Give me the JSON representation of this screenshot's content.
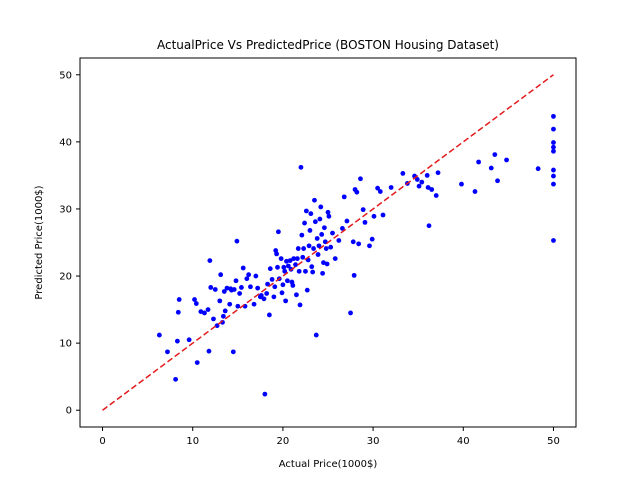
{
  "chart_data": {
    "type": "scatter",
    "title": "ActualPrice Vs PredictedPrice (BOSTON Housing Dataset)",
    "xlabel": "Actual Price(1000$)",
    "ylabel": "Predicted Price(1000$)",
    "xlim": [
      -2.5,
      52.5
    ],
    "ylim": [
      -2.5,
      52.5
    ],
    "xticks": [
      0,
      10,
      20,
      30,
      40,
      50
    ],
    "yticks": [
      0,
      10,
      20,
      30,
      40,
      50
    ],
    "grid": false,
    "series": [
      {
        "style": "points",
        "color": "#0000ff",
        "points": [
          [
            6.3,
            11.2
          ],
          [
            7.2,
            8.7
          ],
          [
            8.1,
            4.6
          ],
          [
            8.3,
            10.3
          ],
          [
            8.4,
            14.6
          ],
          [
            8.5,
            16.5
          ],
          [
            9.6,
            10.5
          ],
          [
            10.2,
            16.5
          ],
          [
            10.4,
            15.9
          ],
          [
            10.5,
            7.1
          ],
          [
            10.9,
            14.7
          ],
          [
            11.3,
            14.5
          ],
          [
            11.7,
            15.0
          ],
          [
            11.8,
            8.8
          ],
          [
            11.9,
            22.3
          ],
          [
            12.0,
            18.3
          ],
          [
            12.3,
            13.6
          ],
          [
            12.5,
            18.0
          ],
          [
            12.7,
            12.6
          ],
          [
            13.0,
            16.3
          ],
          [
            13.1,
            20.2
          ],
          [
            13.3,
            13.1
          ],
          [
            13.4,
            14.0
          ],
          [
            13.5,
            17.7
          ],
          [
            13.6,
            14.8
          ],
          [
            13.8,
            18.2
          ],
          [
            14.1,
            15.8
          ],
          [
            14.2,
            18.1
          ],
          [
            14.3,
            17.9
          ],
          [
            14.5,
            8.7
          ],
          [
            14.6,
            18.0
          ],
          [
            14.8,
            19.3
          ],
          [
            14.9,
            25.2
          ],
          [
            15.0,
            15.5
          ],
          [
            15.2,
            17.4
          ],
          [
            15.4,
            18.3
          ],
          [
            15.6,
            21.2
          ],
          [
            15.8,
            15.5
          ],
          [
            16.0,
            19.6
          ],
          [
            16.2,
            20.2
          ],
          [
            16.4,
            18.4
          ],
          [
            16.8,
            15.8
          ],
          [
            17.0,
            20.0
          ],
          [
            17.2,
            18.2
          ],
          [
            17.5,
            16.9
          ],
          [
            17.6,
            17.1
          ],
          [
            17.9,
            16.6
          ],
          [
            18.0,
            2.4
          ],
          [
            18.2,
            17.4
          ],
          [
            18.3,
            18.8
          ],
          [
            18.5,
            14.2
          ],
          [
            18.6,
            21.1
          ],
          [
            18.8,
            19.5
          ],
          [
            19.0,
            16.9
          ],
          [
            19.1,
            18.4
          ],
          [
            19.2,
            23.8
          ],
          [
            19.3,
            23.3
          ],
          [
            19.4,
            21.3
          ],
          [
            19.5,
            26.6
          ],
          [
            19.6,
            19.6
          ],
          [
            19.8,
            22.6
          ],
          [
            19.9,
            17.5
          ],
          [
            20.0,
            18.7
          ],
          [
            20.1,
            21.3
          ],
          [
            20.2,
            20.7
          ],
          [
            20.3,
            16.3
          ],
          [
            20.4,
            22.2
          ],
          [
            20.5,
            19.3
          ],
          [
            20.6,
            21.5
          ],
          [
            20.8,
            22.3
          ],
          [
            20.9,
            21.0
          ],
          [
            21.0,
            19.1
          ],
          [
            21.1,
            18.6
          ],
          [
            21.2,
            22.6
          ],
          [
            21.4,
            21.7
          ],
          [
            21.5,
            17.2
          ],
          [
            21.6,
            22.6
          ],
          [
            21.7,
            24.1
          ],
          [
            21.8,
            20.7
          ],
          [
            21.9,
            15.7
          ],
          [
            22.0,
            36.2
          ],
          [
            22.1,
            26.1
          ],
          [
            22.2,
            22.8
          ],
          [
            22.3,
            24.1
          ],
          [
            22.4,
            27.9
          ],
          [
            22.5,
            20.7
          ],
          [
            22.6,
            29.7
          ],
          [
            22.7,
            17.9
          ],
          [
            22.8,
            22.4
          ],
          [
            22.9,
            24.5
          ],
          [
            23.0,
            26.8
          ],
          [
            23.1,
            29.3
          ],
          [
            23.2,
            21.4
          ],
          [
            23.3,
            20.6
          ],
          [
            23.4,
            24.1
          ],
          [
            23.5,
            31.3
          ],
          [
            23.6,
            28.1
          ],
          [
            23.7,
            11.2
          ],
          [
            23.8,
            25.6
          ],
          [
            23.9,
            23.2
          ],
          [
            24.0,
            24.5
          ],
          [
            24.1,
            28.5
          ],
          [
            24.2,
            30.3
          ],
          [
            24.3,
            26.2
          ],
          [
            24.4,
            20.4
          ],
          [
            24.5,
            22.0
          ],
          [
            24.6,
            27.2
          ],
          [
            24.7,
            25.1
          ],
          [
            24.8,
            24.1
          ],
          [
            24.9,
            21.8
          ],
          [
            25.0,
            29.5
          ],
          [
            25.1,
            28.9
          ],
          [
            25.3,
            24.3
          ],
          [
            25.5,
            26.4
          ],
          [
            25.8,
            22.6
          ],
          [
            26.2,
            25.3
          ],
          [
            26.6,
            27.1
          ],
          [
            26.8,
            31.8
          ],
          [
            27.1,
            28.2
          ],
          [
            27.5,
            14.5
          ],
          [
            27.8,
            25.1
          ],
          [
            27.9,
            20.1
          ],
          [
            28.0,
            32.9
          ],
          [
            28.2,
            32.5
          ],
          [
            28.4,
            24.8
          ],
          [
            28.6,
            34.5
          ],
          [
            28.9,
            29.9
          ],
          [
            29.1,
            28.0
          ],
          [
            29.6,
            24.5
          ],
          [
            29.9,
            25.5
          ],
          [
            30.1,
            28.9
          ],
          [
            30.5,
            33.1
          ],
          [
            30.8,
            32.6
          ],
          [
            31.1,
            29.1
          ],
          [
            32.0,
            33.2
          ],
          [
            33.3,
            35.3
          ],
          [
            33.8,
            33.8
          ],
          [
            34.6,
            34.9
          ],
          [
            34.9,
            34.4
          ],
          [
            35.1,
            33.4
          ],
          [
            35.4,
            34.0
          ],
          [
            36.0,
            35.0
          ],
          [
            36.1,
            33.2
          ],
          [
            36.2,
            27.5
          ],
          [
            36.5,
            32.9
          ],
          [
            37.0,
            32.0
          ],
          [
            37.2,
            35.4
          ],
          [
            39.8,
            33.7
          ],
          [
            41.3,
            32.6
          ],
          [
            41.7,
            37.0
          ],
          [
            43.1,
            36.1
          ],
          [
            43.5,
            38.1
          ],
          [
            43.8,
            34.2
          ],
          [
            44.8,
            37.3
          ],
          [
            48.3,
            36.0
          ],
          [
            50.0,
            43.8
          ],
          [
            50.0,
            41.9
          ],
          [
            50.0,
            39.9
          ],
          [
            50.0,
            39.2
          ],
          [
            50.0,
            38.6
          ],
          [
            50.0,
            35.8
          ],
          [
            50.0,
            34.9
          ],
          [
            50.0,
            33.7
          ],
          [
            50.0,
            25.3
          ]
        ]
      },
      {
        "style": "dashed-line",
        "color": "#e41a1c",
        "points": [
          [
            0,
            0
          ],
          [
            50,
            50
          ]
        ]
      }
    ]
  }
}
